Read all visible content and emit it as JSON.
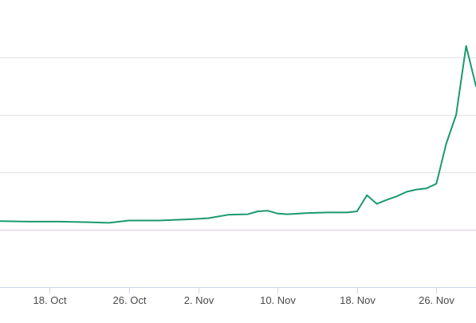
{
  "chart_data": {
    "type": "line",
    "title": "",
    "xlabel": "",
    "ylabel": "",
    "x_tick_labels": [
      "18. Oct",
      "26. Oct",
      "2. Nov",
      "10. Nov",
      "18. Nov",
      "26. Nov"
    ],
    "x_tick_dates": [
      "2018-10-18",
      "2018-10-26",
      "2018-11-02",
      "2018-11-10",
      "2018-11-18",
      "2018-11-26"
    ],
    "xlim": [
      "2018-10-13",
      "2018-11-30"
    ],
    "ylim": [
      0,
      5
    ],
    "y_gridlines": [
      1,
      2,
      3,
      4
    ],
    "y_reference_line": 1,
    "grid": true,
    "legend": "none",
    "series": [
      {
        "color": "#1a9a6c",
        "x": [
          "2018-10-13",
          "2018-10-16",
          "2018-10-19",
          "2018-10-22",
          "2018-10-24",
          "2018-10-26",
          "2018-10-29",
          "2018-11-01",
          "2018-11-03",
          "2018-11-05",
          "2018-11-07",
          "2018-11-08",
          "2018-11-09",
          "2018-11-10",
          "2018-11-11",
          "2018-11-13",
          "2018-11-15",
          "2018-11-17",
          "2018-11-18",
          "2018-11-19",
          "2018-11-20",
          "2018-11-21",
          "2018-11-22",
          "2018-11-23",
          "2018-11-24",
          "2018-11-25",
          "2018-11-26",
          "2018-11-27",
          "2018-11-28",
          "2018-11-29",
          "2018-11-30"
        ],
        "y": [
          1.15,
          1.14,
          1.14,
          1.13,
          1.12,
          1.16,
          1.16,
          1.18,
          1.2,
          1.26,
          1.27,
          1.32,
          1.33,
          1.28,
          1.27,
          1.29,
          1.3,
          1.3,
          1.32,
          1.6,
          1.45,
          1.52,
          1.58,
          1.66,
          1.7,
          1.72,
          1.8,
          2.5,
          3.0,
          4.2,
          3.5
        ]
      }
    ]
  }
}
